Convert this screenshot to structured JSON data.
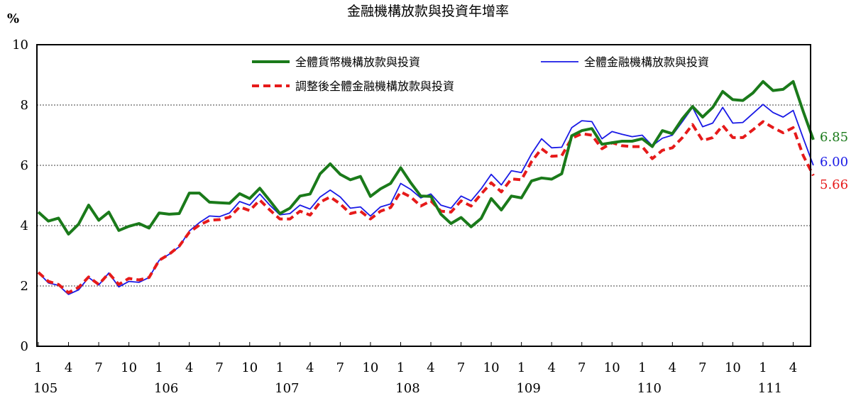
{
  "chart_data": {
    "type": "line",
    "title": "金融機構放款與投資年增率",
    "ylabel": "%",
    "ylim": [
      0,
      10
    ],
    "yticks": [
      0,
      2,
      4,
      6,
      8,
      10
    ],
    "grid": "horizontal-dashed",
    "legend_position": "top-right inside",
    "x_tick_labels": [
      {
        "month": "1",
        "year": "105"
      },
      {
        "month": "4",
        "year": ""
      },
      {
        "month": "7",
        "year": ""
      },
      {
        "month": "10",
        "year": ""
      },
      {
        "month": "1",
        "year": "106"
      },
      {
        "month": "4",
        "year": ""
      },
      {
        "month": "7",
        "year": ""
      },
      {
        "month": "10",
        "year": ""
      },
      {
        "month": "1",
        "year": "107"
      },
      {
        "month": "4",
        "year": ""
      },
      {
        "month": "7",
        "year": ""
      },
      {
        "month": "10",
        "year": ""
      },
      {
        "month": "1",
        "year": "108"
      },
      {
        "month": "4",
        "year": ""
      },
      {
        "month": "7",
        "year": ""
      },
      {
        "month": "10",
        "year": ""
      },
      {
        "month": "1",
        "year": "109"
      },
      {
        "month": "4",
        "year": ""
      },
      {
        "month": "7",
        "year": ""
      },
      {
        "month": "10",
        "year": ""
      },
      {
        "month": "1",
        "year": "110"
      },
      {
        "month": "4",
        "year": ""
      },
      {
        "month": "7",
        "year": ""
      },
      {
        "month": "10",
        "year": ""
      },
      {
        "month": "1",
        "year": "111"
      },
      {
        "month": "4",
        "year": ""
      }
    ],
    "series": [
      {
        "name": "全體貨幣機構放款與投資",
        "color": "#1a7a1a",
        "style": "solid-thick",
        "end_label": "6.85",
        "values": [
          4.45,
          4.15,
          4.25,
          3.72,
          4.05,
          4.68,
          4.18,
          4.45,
          3.84,
          3.98,
          4.07,
          3.92,
          4.42,
          4.38,
          4.4,
          5.08,
          5.08,
          4.78,
          4.76,
          4.74,
          5.06,
          4.9,
          5.24,
          4.83,
          4.4,
          4.58,
          4.98,
          5.05,
          5.72,
          6.05,
          5.7,
          5.52,
          5.63,
          4.97,
          5.22,
          5.4,
          5.92,
          5.42,
          4.98,
          4.97,
          4.38,
          4.07,
          4.27,
          3.96,
          4.24,
          4.9,
          4.52,
          4.98,
          4.92,
          5.48,
          5.58,
          5.54,
          5.72,
          6.98,
          7.15,
          7.22,
          6.7,
          6.75,
          6.8,
          6.8,
          6.88,
          6.62,
          7.15,
          7.05,
          7.55,
          7.95,
          7.6,
          7.92,
          8.45,
          8.18,
          8.15,
          8.4,
          8.78,
          8.48,
          8.52,
          8.78,
          7.78,
          6.85
        ]
      },
      {
        "name": "全體金融機構放款與投資",
        "color": "#1a1ae6",
        "style": "solid-thin",
        "end_label": "6.00",
        "values": [
          2.45,
          2.1,
          2.02,
          1.72,
          1.87,
          2.28,
          2.03,
          2.43,
          1.97,
          2.15,
          2.12,
          2.28,
          2.85,
          3.05,
          3.3,
          3.82,
          4.1,
          4.32,
          4.3,
          4.42,
          4.8,
          4.68,
          5.05,
          4.68,
          4.36,
          4.4,
          4.68,
          4.55,
          4.95,
          5.18,
          4.95,
          4.58,
          4.62,
          4.32,
          4.62,
          4.72,
          5.4,
          5.2,
          4.92,
          5.05,
          4.68,
          4.58,
          4.98,
          4.82,
          5.22,
          5.7,
          5.35,
          5.82,
          5.76,
          6.38,
          6.88,
          6.58,
          6.6,
          7.25,
          7.48,
          7.45,
          6.88,
          7.12,
          7.03,
          6.95,
          7.0,
          6.65,
          6.9,
          7.0,
          7.45,
          7.92,
          7.28,
          7.4,
          7.92,
          7.4,
          7.42,
          7.72,
          8.02,
          7.75,
          7.6,
          7.82,
          6.9,
          6.0
        ]
      },
      {
        "name": "調整後全體金融機構放款與投資",
        "color": "#e61a1a",
        "style": "dashed-thick",
        "end_label": "5.66",
        "values": [
          2.45,
          2.15,
          2.05,
          1.78,
          1.95,
          2.3,
          2.05,
          2.42,
          2.05,
          2.25,
          2.2,
          2.28,
          2.85,
          3.05,
          3.32,
          3.78,
          4.02,
          4.18,
          4.2,
          4.28,
          4.62,
          4.5,
          4.85,
          4.52,
          4.22,
          4.22,
          4.48,
          4.35,
          4.78,
          4.95,
          4.72,
          4.4,
          4.48,
          4.22,
          4.48,
          4.6,
          5.12,
          4.95,
          4.65,
          4.82,
          4.48,
          4.45,
          4.82,
          4.65,
          5.05,
          5.42,
          5.12,
          5.55,
          5.52,
          6.12,
          6.55,
          6.3,
          6.32,
          6.9,
          7.05,
          7.0,
          6.55,
          6.75,
          6.65,
          6.62,
          6.62,
          6.22,
          6.5,
          6.58,
          6.92,
          7.35,
          6.82,
          6.92,
          7.32,
          6.92,
          6.92,
          7.18,
          7.45,
          7.25,
          7.08,
          7.25,
          6.32,
          5.66
        ]
      }
    ]
  }
}
